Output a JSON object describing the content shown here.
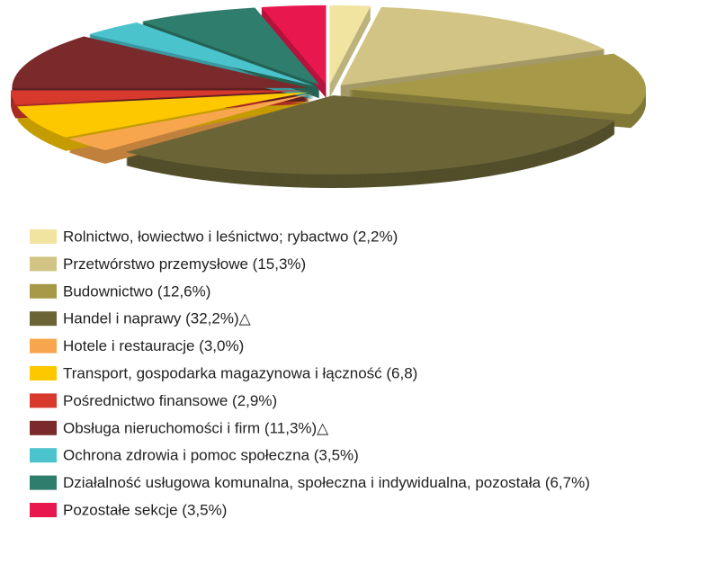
{
  "chart_data": {
    "type": "pie",
    "categories": [
      "Rolnictwo, łowiectwo i leśnictwo; rybactwo (2,2%)",
      "Przetwórstwo przemysłowe (15,3%)",
      "Budownictwo (12,6%)",
      "Handel i naprawy (32,2%)△",
      "Hotele i restauracje (3,0%)",
      "Transport, gospodarka magazynowa i łączność (6,8)",
      "Pośrednictwo finansowe (2,9%)",
      "Obsługa nieruchomości i firm (11,3%)△",
      "Ochrona zdrowia i pomoc społeczna (3,5%)",
      "Działalność usługowa komunalna, społeczna i indywidualna, pozostała (6,7%)",
      "Pozostałe sekcje (3,5%)"
    ],
    "values": [
      2.2,
      15.3,
      12.6,
      32.2,
      3.0,
      6.8,
      2.9,
      11.3,
      3.5,
      6.7,
      3.5
    ],
    "colors": [
      "#f0e4a0",
      "#d2c484",
      "#a69a48",
      "#6b6437",
      "#f8a64e",
      "#fdc800",
      "#d7392d",
      "#7b2a2b",
      "#4ac3cd",
      "#2f7d6c",
      "#e8174d"
    ]
  }
}
